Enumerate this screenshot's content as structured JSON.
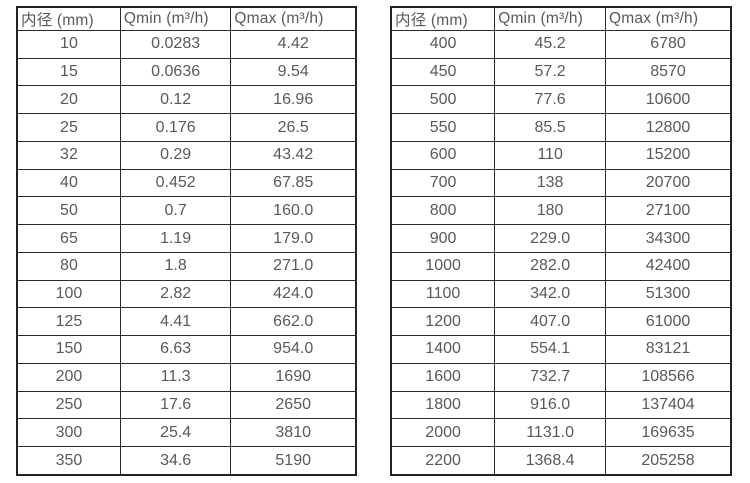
{
  "page": {
    "background": "#ffffff",
    "text_color": "#595959",
    "border_color": "#2b2b2b"
  },
  "tables": [
    {
      "name": "flow-rate-table-left",
      "headers": [
        "内径 (mm)",
        "Qmin (m³/h)",
        "Qmax (m³/h)"
      ],
      "rows": [
        [
          "10",
          "0.0283",
          "4.42"
        ],
        [
          "15",
          "0.0636",
          "9.54"
        ],
        [
          "20",
          "0.12",
          "16.96"
        ],
        [
          "25",
          "0.176",
          "26.5"
        ],
        [
          "32",
          "0.29",
          "43.42"
        ],
        [
          "40",
          "0.452",
          "67.85"
        ],
        [
          "50",
          "0.7",
          "160.0"
        ],
        [
          "65",
          "1.19",
          "179.0"
        ],
        [
          "80",
          "1.8",
          "271.0"
        ],
        [
          "100",
          "2.82",
          "424.0"
        ],
        [
          "125",
          "4.41",
          "662.0"
        ],
        [
          "150",
          "6.63",
          "954.0"
        ],
        [
          "200",
          "11.3",
          "1690"
        ],
        [
          "250",
          "17.6",
          "2650"
        ],
        [
          "300",
          "25.4",
          "3810"
        ],
        [
          "350",
          "34.6",
          "5190"
        ]
      ]
    },
    {
      "name": "flow-rate-table-right",
      "headers": [
        "内径 (mm)",
        "Qmin (m³/h)",
        "Qmax (m³/h)"
      ],
      "rows": [
        [
          "400",
          "45.2",
          "6780"
        ],
        [
          "450",
          "57.2",
          "8570"
        ],
        [
          "500",
          "77.6",
          "10600"
        ],
        [
          "550",
          "85.5",
          "12800"
        ],
        [
          "600",
          "110",
          "15200"
        ],
        [
          "700",
          "138",
          "20700"
        ],
        [
          "800",
          "180",
          "27100"
        ],
        [
          "900",
          "229.0",
          "34300"
        ],
        [
          "1000",
          "282.0",
          "42400"
        ],
        [
          "1100",
          "342.0",
          "51300"
        ],
        [
          "1200",
          "407.0",
          "61000"
        ],
        [
          "1400",
          "554.1",
          "83121"
        ],
        [
          "1600",
          "732.7",
          "108566"
        ],
        [
          "1800",
          "916.0",
          "137404"
        ],
        [
          "2000",
          "1131.0",
          "169635"
        ],
        [
          "2200",
          "1368.4",
          "205258"
        ]
      ]
    }
  ]
}
